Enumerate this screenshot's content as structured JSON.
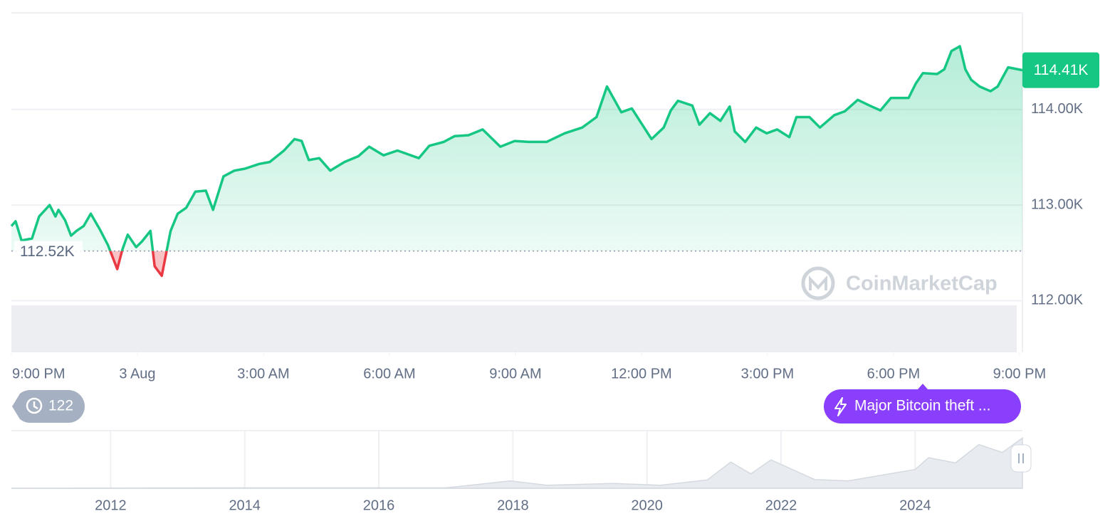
{
  "chart_data": {
    "type": "line",
    "x": [
      0,
      0.1,
      0.24,
      0.49,
      0.66,
      0.91,
      1.05,
      1.12,
      1.28,
      1.42,
      1.55,
      1.72,
      1.89,
      2.1,
      2.3,
      2.52,
      2.64,
      2.77,
      2.97,
      3.11,
      3.31,
      3.41,
      3.58,
      3.79,
      3.96,
      4.16,
      4.38,
      4.63,
      4.8,
      5.05,
      5.31,
      5.56,
      5.9,
      6.15,
      6.49,
      6.74,
      6.91,
      7.08,
      7.33,
      7.59,
      7.93,
      8.26,
      8.52,
      8.86,
      9.19,
      9.7,
      9.95,
      10.29,
      10.55,
      10.88,
      11.22,
      11.64,
      11.98,
      12.32,
      12.74,
      13.17,
      13.59,
      13.93,
      14.18,
      14.52,
      14.77,
      15.02,
      15.24,
      15.53,
      15.7,
      15.87,
      16.21,
      16.38,
      16.63,
      16.88,
      17.1,
      17.22,
      17.47,
      17.73,
      17.98,
      18.23,
      18.52,
      18.69,
      19.0,
      19.25,
      19.59,
      19.84,
      20.15,
      20.43,
      20.69,
      20.94,
      21.36,
      21.53,
      21.7,
      22.04,
      22.21,
      22.38,
      22.58,
      22.71,
      22.85,
      23.05,
      23.31,
      23.48,
      23.73,
      24.07
    ],
    "values": [
      112.78,
      112.83,
      112.63,
      112.65,
      112.88,
      113.0,
      112.88,
      112.95,
      112.84,
      112.68,
      112.73,
      112.78,
      112.91,
      112.75,
      112.58,
      112.33,
      112.53,
      112.69,
      112.56,
      112.62,
      112.73,
      112.36,
      112.26,
      112.73,
      112.91,
      112.97,
      113.14,
      113.15,
      112.95,
      113.3,
      113.36,
      113.38,
      113.43,
      113.45,
      113.57,
      113.69,
      113.67,
      113.47,
      113.49,
      113.36,
      113.45,
      113.51,
      113.61,
      113.52,
      113.57,
      113.49,
      113.62,
      113.66,
      113.72,
      113.73,
      113.79,
      113.61,
      113.67,
      113.66,
      113.66,
      113.75,
      113.81,
      113.92,
      114.24,
      113.97,
      114.01,
      113.84,
      113.69,
      113.81,
      113.99,
      114.09,
      114.04,
      113.84,
      113.96,
      113.88,
      114.03,
      113.77,
      113.66,
      113.81,
      113.75,
      113.79,
      113.71,
      113.92,
      113.92,
      113.81,
      113.94,
      113.98,
      114.1,
      114.04,
      113.99,
      114.12,
      114.12,
      114.27,
      114.38,
      114.37,
      114.42,
      114.61,
      114.66,
      114.42,
      114.31,
      114.24,
      114.19,
      114.24,
      114.44,
      114.41
    ],
    "color": "#16c784",
    "down_color": "#ea3943",
    "xlim": [
      0,
      24.07
    ],
    "xticks": [
      {
        "value": 0,
        "label": "9:00 PM"
      },
      {
        "value": 3,
        "label": "3 Aug"
      },
      {
        "value": 6,
        "label": "3:00 AM"
      },
      {
        "value": 9,
        "label": "6:00 AM"
      },
      {
        "value": 12,
        "label": "9:00 AM"
      },
      {
        "value": 15,
        "label": "12:00 PM"
      },
      {
        "value": 18,
        "label": "3:00 PM"
      },
      {
        "value": 21,
        "label": "6:00 PM"
      },
      {
        "value": 24,
        "label": "9:00 PM"
      }
    ],
    "ylim": [
      111.46,
      115.01
    ],
    "yticks": [
      {
        "value": 112,
        "label": "112.00K"
      },
      {
        "value": 113,
        "label": "113.00K"
      },
      {
        "value": 114,
        "label": "114.00K"
      }
    ],
    "grid": true,
    "reference": {
      "value": 112.52,
      "label": "112.52K"
    },
    "current": {
      "value": 114.41,
      "label": "114.41K"
    },
    "watermark": "CoinMarketCap"
  },
  "navigator": {
    "type": "area",
    "x": [
      2010.52,
      2013.9,
      2017.0,
      2017.96,
      2018.5,
      2019.5,
      2020.2,
      2020.9,
      2021.25,
      2021.55,
      2021.85,
      2022.5,
      2023.0,
      2023.5,
      2024.0,
      2024.2,
      2024.6,
      2024.95,
      2025.3,
      2025.6
    ],
    "values": [
      0,
      1,
      1,
      17,
      7,
      11,
      7,
      19,
      60,
      33,
      65,
      20,
      17,
      30,
      43,
      70,
      58,
      100,
      82,
      115
    ],
    "xlim": [
      2010.52,
      2025.6
    ],
    "ylim": [
      0,
      132
    ],
    "xticks": [
      2012,
      2014,
      2016,
      2018,
      2020,
      2022,
      2024
    ]
  },
  "history_badge": {
    "count": 122
  },
  "event": {
    "label": "Major Bitcoin theft ..."
  }
}
